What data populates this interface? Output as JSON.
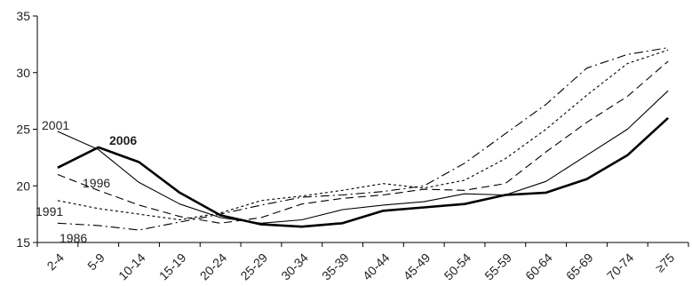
{
  "chart_data": {
    "type": "line",
    "categories": [
      "2-4",
      "5-9",
      "10-14",
      "15-19",
      "20-24",
      "25-29",
      "30-34",
      "35-39",
      "40-44",
      "45-49",
      "50-54",
      "55-59",
      "60-64",
      "65-69",
      "70-74",
      "≥75"
    ],
    "ylim": [
      15,
      35
    ],
    "yticks": [
      15,
      20,
      25,
      30,
      35
    ],
    "grid": false,
    "legend": "inline labels",
    "series": [
      {
        "name": "2006",
        "style": "solid-thick",
        "color": "#000000",
        "values": [
          21.6,
          23.4,
          22.1,
          19.4,
          17.4,
          16.6,
          16.4,
          16.7,
          17.8,
          18.1,
          18.4,
          19.2,
          19.4,
          20.6,
          22.7,
          26.0
        ]
      },
      {
        "name": "2001",
        "style": "solid-thin",
        "color": "#000000",
        "values": [
          24.8,
          23.2,
          20.3,
          18.4,
          17.2,
          16.7,
          17.0,
          17.9,
          18.3,
          18.6,
          19.3,
          19.2,
          20.4,
          22.7,
          25.0,
          28.4
        ]
      },
      {
        "name": "1996",
        "style": "long-dash",
        "color": "#000000",
        "values": [
          21.0,
          19.6,
          18.3,
          17.3,
          16.7,
          17.2,
          18.4,
          18.9,
          19.2,
          19.7,
          19.6,
          20.2,
          23.0,
          25.6,
          27.9,
          31.0
        ]
      },
      {
        "name": "1991",
        "style": "short-dash",
        "color": "#000000",
        "values": [
          18.7,
          18.0,
          17.5,
          17.0,
          17.6,
          18.7,
          19.1,
          19.6,
          20.2,
          19.8,
          20.5,
          22.4,
          25.0,
          28.0,
          30.8,
          32.0
        ]
      },
      {
        "name": "1986",
        "style": "dash-dot",
        "color": "#000000",
        "values": [
          16.7,
          16.5,
          16.1,
          16.8,
          17.5,
          18.3,
          19.0,
          19.2,
          19.5,
          20.0,
          22.0,
          24.6,
          27.2,
          30.4,
          31.6,
          32.2
        ]
      }
    ]
  }
}
